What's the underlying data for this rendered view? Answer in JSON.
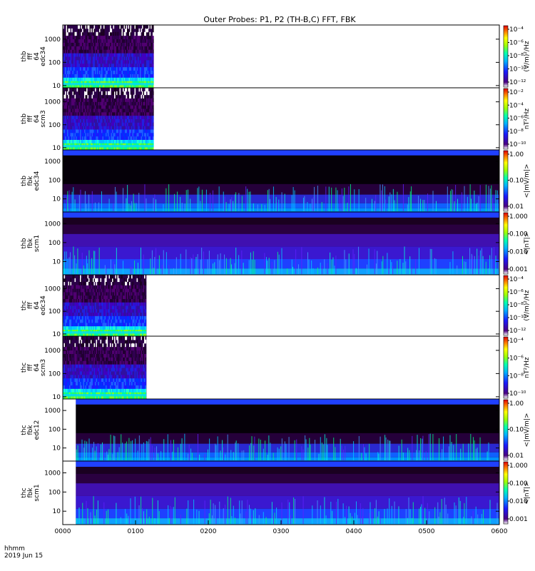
{
  "title": "Outer Probes: P1, P2 (TH-B,C) FFT, FBK",
  "time_axis": {
    "ticks": [
      "0000",
      "0100",
      "0200",
      "0300",
      "0400",
      "0500",
      "0600"
    ],
    "corner_label_1": "hhmm",
    "corner_label_2": "2019 Jun 15"
  },
  "colorbar_scales": {
    "e_fff": [
      "10⁻⁴",
      "10⁻⁶",
      "10⁻⁸",
      "10⁻¹⁰",
      "10⁻¹²"
    ],
    "b_fff": [
      "10⁻²",
      "10⁻⁴",
      "10⁻⁶",
      "10⁻⁸",
      "10⁻¹⁰"
    ],
    "e_fbk": [
      "1.00",
      "0.10",
      "0.01"
    ],
    "b_fbk": [
      "1.000",
      "0.100",
      "0.010",
      "0.001"
    ]
  },
  "chart_data": {
    "type": "heatmap",
    "title": "Outer Probes: P1, P2 (TH-B,C) FFT, FBK",
    "x_range_hours": [
      0,
      6
    ],
    "panels": [
      {
        "id": "thb_fff_efi",
        "ylabel": [
          "thb",
          "fff",
          "64",
          "edc34"
        ],
        "yscale": "log",
        "yticks": [
          "10",
          "100",
          "1000"
        ],
        "ylim": [
          8,
          4096
        ],
        "data_end_hours": 1.25,
        "colorbar_label": "(V/m)²/Hz",
        "colorbar_ticks": [
          "10⁻⁴",
          "10⁻⁶",
          "10⁻⁸",
          "10⁻¹⁰",
          "10⁻¹²"
        ],
        "kind": "fff"
      },
      {
        "id": "thb_fff_scm",
        "ylabel": [
          "thb",
          "fff",
          "64",
          "scm3"
        ],
        "yscale": "log",
        "yticks": [
          "10",
          "100",
          "1000"
        ],
        "ylim": [
          8,
          4096
        ],
        "data_end_hours": 1.25,
        "colorbar_label": "nT²/Hz",
        "colorbar_ticks": [
          "10⁻²",
          "10⁻⁴",
          "10⁻⁶",
          "10⁻⁸",
          "10⁻¹⁰"
        ],
        "kind": "fff"
      },
      {
        "id": "thb_fbk_efi",
        "ylabel": [
          "thb",
          "fbk",
          "edc34"
        ],
        "yscale": "log",
        "yticks": [
          "10",
          "100",
          "1000"
        ],
        "ylim": [
          2,
          4096
        ],
        "data_start_hours": 0.0,
        "data_end_hours": 6.0,
        "colorbar_label": "<|mV/m|>",
        "colorbar_ticks": [
          "1.00",
          "0.10",
          "0.01"
        ],
        "kind": "fbk_e"
      },
      {
        "id": "thb_fbk_scm",
        "ylabel": [
          "thb",
          "fbk",
          "scm1"
        ],
        "yscale": "log",
        "yticks": [
          "10",
          "100",
          "1000"
        ],
        "ylim": [
          2,
          4096
        ],
        "data_start_hours": 0.0,
        "data_end_hours": 6.0,
        "colorbar_label": "<|nT|>",
        "colorbar_ticks": [
          "1.000",
          "0.100",
          "0.010",
          "0.001"
        ],
        "kind": "fbk_b"
      },
      {
        "id": "thc_fff_efi",
        "ylabel": [
          "thc",
          "fff",
          "64",
          "edc34"
        ],
        "yscale": "log",
        "yticks": [
          "10",
          "100",
          "1000"
        ],
        "ylim": [
          8,
          4096
        ],
        "data_end_hours": 1.15,
        "colorbar_label": "(V/m)²/Hz",
        "colorbar_ticks": [
          "10⁻⁴",
          "10⁻⁶",
          "10⁻⁸",
          "10⁻¹⁰",
          "10⁻¹²"
        ],
        "kind": "fff"
      },
      {
        "id": "thc_fff_scm",
        "ylabel": [
          "thc",
          "fff",
          "64",
          "scm3"
        ],
        "yscale": "log",
        "yticks": [
          "10",
          "100",
          "1000"
        ],
        "ylim": [
          8,
          4096
        ],
        "data_end_hours": 1.15,
        "colorbar_label": "nT²/Hz",
        "colorbar_ticks": [
          "10⁻⁴",
          "10⁻⁶",
          "10⁻⁸",
          "10⁻¹⁰"
        ],
        "kind": "fff"
      },
      {
        "id": "thc_fbk_efi",
        "ylabel": [
          "thc",
          "fbk",
          "edc12"
        ],
        "yscale": "log",
        "yticks": [
          "10",
          "100",
          "1000"
        ],
        "ylim": [
          2,
          4096
        ],
        "data_start_hours": 0.18,
        "data_end_hours": 6.0,
        "colorbar_label": "<|mV/m|>",
        "colorbar_ticks": [
          "1.00",
          "0.10",
          "0.01"
        ],
        "kind": "fbk_e"
      },
      {
        "id": "thc_fbk_scm",
        "ylabel": [
          "thc",
          "fbk",
          "scm1"
        ],
        "yscale": "log",
        "yticks": [
          "10",
          "100",
          "1000"
        ],
        "ylim": [
          2,
          4096
        ],
        "data_start_hours": 0.18,
        "data_end_hours": 6.0,
        "colorbar_label": "<|nT|>",
        "colorbar_ticks": [
          "1.000",
          "0.100",
          "0.010",
          "0.001"
        ],
        "kind": "fbk_b"
      }
    ]
  }
}
